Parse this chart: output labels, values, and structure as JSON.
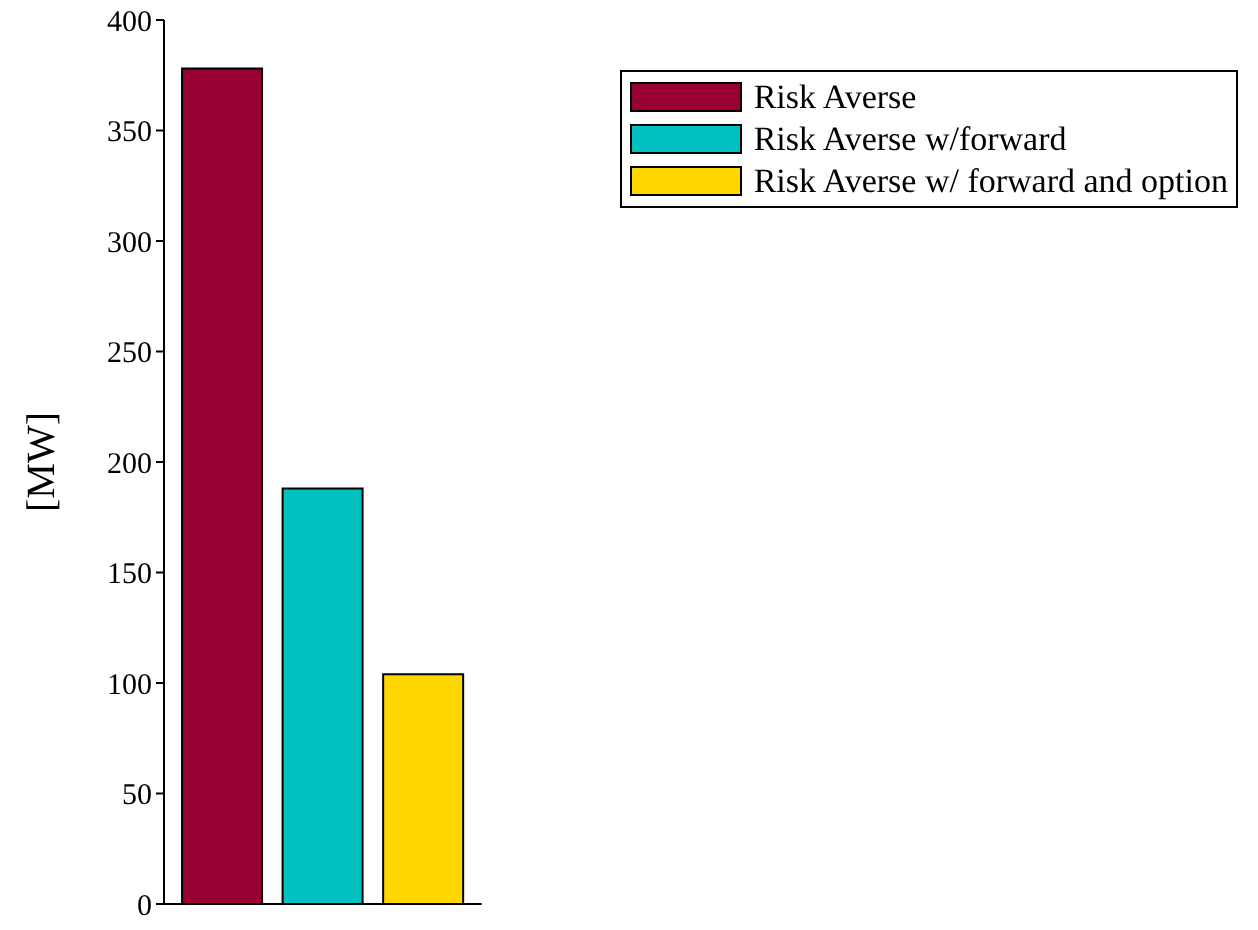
{
  "chart_data": {
    "type": "bar",
    "ylabel": "[MW]",
    "categories": [
      null,
      null,
      null
    ],
    "series": [
      {
        "name": "Risk Averse",
        "color": "#990033",
        "values": [
          378,
          null,
          null
        ]
      },
      {
        "name": "Risk Averse w/forward",
        "color": "#00c0c0",
        "values": [
          null,
          188,
          null
        ]
      },
      {
        "name": "Risk Averse w/ forward and option",
        "color": "#ffd700",
        "values": [
          null,
          null,
          104
        ]
      }
    ],
    "ylim": [
      0,
      400
    ],
    "yticks": [
      0,
      50,
      100,
      150,
      200,
      250,
      300,
      350,
      400
    ],
    "grid": false,
    "legend": "top right"
  }
}
